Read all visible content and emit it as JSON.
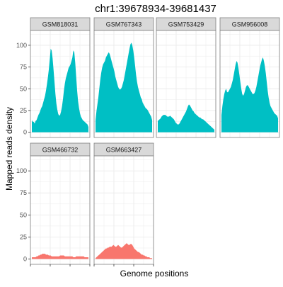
{
  "chart_data": {
    "type": "area",
    "title": "chr1:39678934-39681437",
    "xlabel": "Genome positions",
    "ylabel": "Mapped reads density",
    "ylim": [
      -6,
      117
    ],
    "yticks": [
      0,
      25,
      50,
      75,
      100
    ],
    "grid": true,
    "facet_rows": 2,
    "facet_cols": 4,
    "colors": {
      "teal": "#00bfc4",
      "salmon": "#f8766d",
      "strip": "#d9d9d9",
      "grid": "#ebebeb",
      "panel_border": "#7f7f7f"
    },
    "panels": [
      {
        "name": "GSM818031",
        "row": 0,
        "col": 0,
        "color": "#00bfc4",
        "values": [
          14,
          12,
          12,
          10,
          13,
          14,
          17,
          20,
          22,
          25,
          28,
          30,
          34,
          38,
          42,
          48,
          55,
          63,
          72,
          84,
          96,
          94,
          85,
          72,
          58,
          44,
          33,
          26,
          21,
          19,
          20,
          24,
          30,
          38,
          48,
          56,
          62,
          66,
          70,
          74,
          76,
          78,
          82,
          86,
          94,
          92,
          80,
          64,
          48,
          36,
          28,
          22,
          18,
          16,
          14,
          13,
          12,
          11,
          10,
          9,
          6
        ]
      },
      {
        "name": "GSM767343",
        "row": 0,
        "col": 1,
        "color": "#00bfc4",
        "values": [
          14,
          24,
          32,
          40,
          50,
          60,
          68,
          74,
          78,
          80,
          82,
          86,
          88,
          90,
          92,
          90,
          86,
          82,
          78,
          74,
          70,
          64,
          60,
          56,
          52,
          50,
          49,
          50,
          52,
          56,
          60,
          66,
          72,
          78,
          84,
          90,
          96,
          101,
          103,
          100,
          94,
          86,
          76,
          66,
          58,
          52,
          48,
          44,
          40,
          38,
          34,
          32,
          30,
          28,
          27,
          26,
          24,
          22,
          20,
          18,
          14
        ]
      },
      {
        "name": "GSM753429",
        "row": 0,
        "col": 2,
        "color": "#00bfc4",
        "values": [
          13,
          14,
          15,
          16,
          18,
          19,
          20,
          20,
          20,
          19,
          18,
          18,
          18,
          19,
          18,
          17,
          16,
          15,
          13,
          11,
          10,
          9,
          9,
          10,
          12,
          14,
          16,
          18,
          20,
          22,
          24,
          27,
          30,
          32,
          31,
          29,
          27,
          25,
          24,
          22,
          21,
          20,
          19,
          18,
          17,
          17,
          16,
          15,
          15,
          14,
          13,
          12,
          11,
          10,
          9,
          8,
          7,
          6,
          5,
          4,
          3
        ]
      },
      {
        "name": "GSM956008",
        "row": 0,
        "col": 3,
        "color": "#00bfc4",
        "values": [
          20,
          30,
          38,
          44,
          48,
          50,
          46,
          46,
          48,
          50,
          52,
          56,
          60,
          66,
          72,
          78,
          82,
          80,
          74,
          66,
          58,
          50,
          44,
          42,
          44,
          48,
          52,
          54,
          54,
          52,
          50,
          48,
          46,
          44,
          44,
          45,
          48,
          52,
          58,
          64,
          70,
          76,
          80,
          84,
          86,
          82,
          76,
          68,
          58,
          48,
          40,
          34,
          30,
          28,
          26,
          24,
          22,
          21,
          20,
          19,
          16
        ]
      },
      {
        "name": "GSM466732",
        "row": 1,
        "col": 0,
        "color": "#f8766d",
        "values": [
          2,
          2,
          2,
          2,
          2,
          3,
          3,
          4,
          4,
          5,
          5,
          6,
          6,
          6,
          6,
          5,
          5,
          5,
          4,
          4,
          4,
          3,
          3,
          3,
          3,
          3,
          3,
          3,
          3,
          3,
          4,
          4,
          4,
          4,
          4,
          3,
          3,
          3,
          3,
          3,
          3,
          3,
          3,
          3,
          2,
          2,
          2,
          3,
          3,
          3,
          3,
          3,
          3,
          3,
          3,
          3,
          2,
          2,
          2,
          2,
          2
        ]
      },
      {
        "name": "GSM663427",
        "row": 1,
        "col": 1,
        "color": "#f8766d",
        "values": [
          1,
          2,
          3,
          4,
          5,
          6,
          7,
          8,
          9,
          10,
          11,
          12,
          12,
          13,
          13,
          14,
          14,
          14,
          15,
          16,
          15,
          14,
          14,
          15,
          16,
          15,
          14,
          13,
          13,
          14,
          15,
          16,
          17,
          18,
          17,
          16,
          16,
          17,
          17,
          16,
          14,
          12,
          11,
          10,
          9,
          8,
          8,
          7,
          6,
          5,
          5,
          4,
          4,
          3,
          3,
          2,
          2,
          2,
          1,
          1,
          1
        ]
      }
    ]
  }
}
